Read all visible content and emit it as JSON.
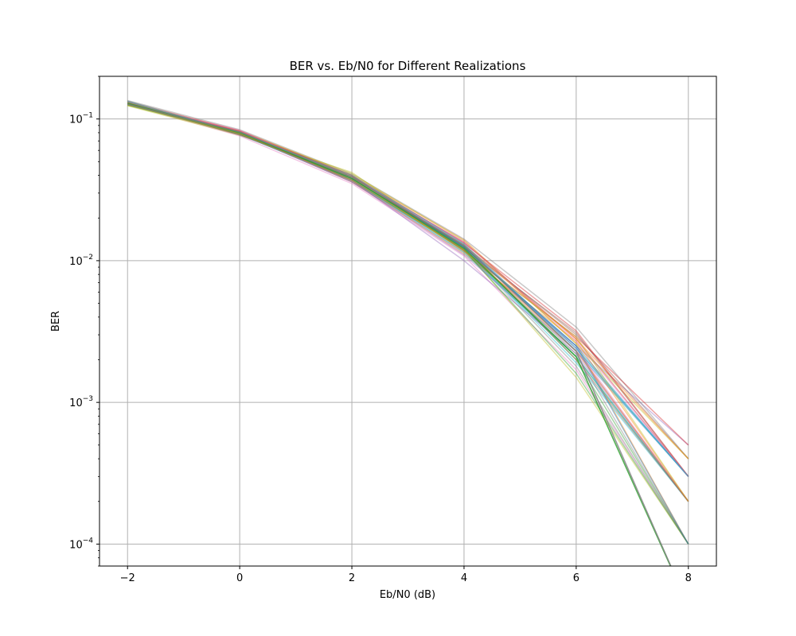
{
  "chart_data": {
    "type": "line",
    "title": "BER vs. Eb/N0 for Different Realizations",
    "xlabel": "Eb/N0 (dB)",
    "ylabel": "BER",
    "x": [
      -2,
      0,
      2,
      4,
      6,
      8
    ],
    "xlim": [
      -2.5,
      8.5
    ],
    "ylim": [
      7e-05,
      0.2
    ],
    "yscale": "log",
    "grid": true,
    "legend": "none",
    "x_ticks": [
      {
        "value": -2,
        "label": "−2"
      },
      {
        "value": 0,
        "label": "0"
      },
      {
        "value": 2,
        "label": "2"
      },
      {
        "value": 4,
        "label": "4"
      },
      {
        "value": 6,
        "label": "6"
      },
      {
        "value": 8,
        "label": "8"
      }
    ],
    "y_ticks": [
      {
        "value": 0.1,
        "base": "10",
        "exp": "−1"
      },
      {
        "value": 0.01,
        "base": "10",
        "exp": "−2"
      },
      {
        "value": 0.001,
        "base": "10",
        "exp": "−3"
      },
      {
        "value": 0.0001,
        "base": "10",
        "exp": "−4"
      }
    ],
    "colors": [
      "#1f77b4",
      "#ff7f0e",
      "#2ca02c",
      "#d62728",
      "#9467bd",
      "#8c564b",
      "#e377c2",
      "#7f7f7f",
      "#bcbd22",
      "#17becf"
    ],
    "series": [
      {
        "values": [
          0.128,
          0.08,
          0.038,
          0.0125,
          0.0024,
          0.0003
        ]
      },
      {
        "values": [
          0.131,
          0.083,
          0.04,
          0.014,
          0.0026,
          0.0001
        ]
      },
      {
        "values": [
          0.126,
          0.078,
          0.037,
          0.0118,
          0.0021,
          0.0002
        ]
      },
      {
        "values": [
          0.133,
          0.082,
          0.039,
          0.0135,
          0.0028,
          0.0003
        ]
      },
      {
        "values": [
          0.129,
          0.079,
          0.036,
          0.0115,
          0.0025,
          0.0005
        ]
      },
      {
        "values": [
          0.13,
          0.081,
          0.038,
          0.0128,
          0.003,
          0.0004
        ]
      },
      {
        "values": [
          0.127,
          0.076,
          0.035,
          0.0108,
          0.0017,
          0.0001
        ]
      },
      {
        "values": [
          0.135,
          0.084,
          0.041,
          0.0142,
          0.0034,
          0.0004
        ]
      },
      {
        "values": [
          0.124,
          0.077,
          0.042,
          0.012,
          0.0015,
          0.0001
        ]
      },
      {
        "values": [
          0.125,
          0.08,
          0.037,
          0.0122,
          0.0019,
          0.0002
        ]
      },
      {
        "values": [
          0.132,
          0.079,
          0.039,
          0.013,
          0.0023,
          0.0003
        ]
      },
      {
        "values": [
          0.128,
          0.082,
          0.036,
          0.0112,
          0.0027,
          0.0002
        ]
      },
      {
        "values": [
          0.13,
          0.078,
          0.038,
          0.0126,
          0.002,
          0.0001
        ]
      },
      {
        "values": [
          0.126,
          0.081,
          0.04,
          0.0117,
          0.0029,
          0.0005
        ]
      },
      {
        "values": [
          0.129,
          0.08,
          0.037,
          0.01,
          0.0022,
          0.0002
        ]
      },
      {
        "values": [
          0.131,
          0.077,
          0.039,
          0.0124,
          0.0031,
          0.0003
        ]
      },
      {
        "values": [
          0.127,
          0.083,
          0.038,
          0.0132,
          0.0024,
          0.0002
        ]
      },
      {
        "values": [
          0.134,
          0.079,
          0.036,
          0.012,
          0.0018,
          0.0001
        ]
      },
      {
        "values": [
          0.125,
          0.082,
          0.041,
          0.0138,
          0.0026,
          0.0004
        ]
      },
      {
        "values": [
          0.13,
          0.078,
          0.037,
          0.0114,
          0.0021,
          0.0002
        ]
      },
      {
        "values": [
          0.128,
          0.08,
          0.039,
          0.0125,
          0.0025,
          0.0003
        ]
      },
      {
        "values": [
          0.132,
          0.081,
          0.038,
          0.0129,
          0.0028,
          0.0004
        ]
      },
      {
        "values": [
          0.126,
          0.079,
          0.037,
          0.0119,
          0.0016,
          0.0001
        ]
      },
      {
        "values": [
          0.129,
          0.082,
          0.04,
          0.0133,
          0.0032,
          0.0003
        ]
      },
      {
        "values": [
          0.131,
          0.08,
          0.036,
          0.011,
          0.0023,
          0.0002
        ]
      },
      {
        "values": [
          0.127,
          0.078,
          0.039,
          0.0127,
          0.002,
          0.0002
        ]
      },
      {
        "values": [
          0.13,
          0.083,
          0.038,
          0.0136,
          0.0027,
          0.0003
        ]
      },
      {
        "values": [
          0.128,
          0.081,
          0.037,
          0.0121,
          0.0022,
          0.0001
        ]
      },
      {
        "values": [
          0.125,
          0.079,
          0.039,
          0.0116,
          0.0029,
          0.0002
        ]
      },
      {
        "values": [
          0.133,
          0.08,
          0.04,
          0.0131,
          0.0024,
          0.0003
        ]
      },
      {
        "values": [
          0.128,
          0.081,
          0.038,
          0.0124,
          0.0025,
          0.0001
        ]
      },
      {
        "values": [
          0.13,
          0.079,
          0.037,
          0.012,
          0.0023,
          0.0002
        ]
      }
    ],
    "drop_series": [
      {
        "values": [
          0.129,
          0.08,
          0.038,
          0.0122,
          0.0021,
          0
        ]
      },
      {
        "values": [
          0.127,
          0.081,
          0.039,
          0.0128,
          0.0023,
          0
        ]
      }
    ]
  }
}
